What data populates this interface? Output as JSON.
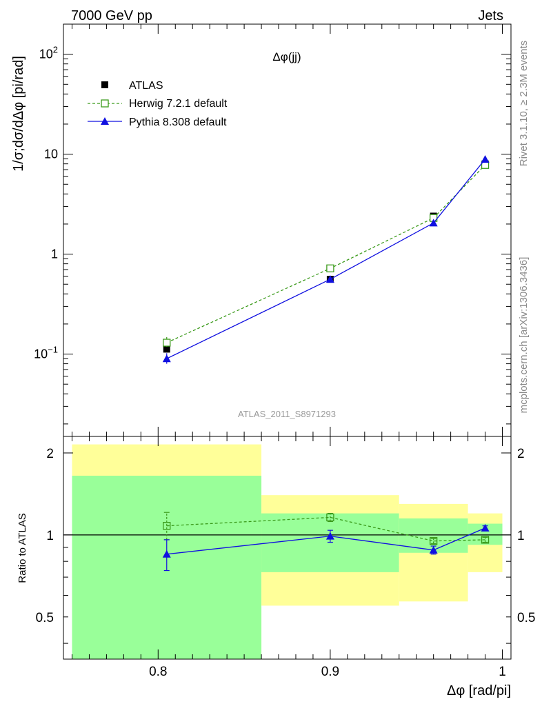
{
  "header": {
    "left": "7000 GeV pp",
    "right": "Jets"
  },
  "side_labels": {
    "rivet": "Rivet 3.1.10, ≥ 2.3M events",
    "source": "mcplots.cern.ch [arXiv:1306.3436]"
  },
  "colors": {
    "atlas": "#000000",
    "herwig": "#3a9a1a",
    "pythia": "#1010e0",
    "band_inner": "#99ff99",
    "band_outer": "#ffff99"
  },
  "chart_data": [
    {
      "type": "line",
      "title": "Δφ(jj)",
      "watermark": "ATLAS_2011_S8971293",
      "ylabel": "1/σ;dσ/dΔφ [pi/rad]",
      "yscale": "log",
      "xlim": [
        0.745,
        1.005
      ],
      "ylim": [
        0.015,
        200
      ],
      "yticks": [
        {
          "v": 0.1,
          "base": "10",
          "exp": "−1"
        },
        {
          "v": 1,
          "label": "1"
        },
        {
          "v": 10,
          "label": "10"
        },
        {
          "v": 100,
          "base": "10",
          "exp": "2"
        }
      ],
      "legend_position": "top-left",
      "x": [
        0.805,
        0.9,
        0.96,
        0.99
      ],
      "series": [
        {
          "name": "ATLAS",
          "key": "atlas",
          "values": [
            0.112,
            0.56,
            2.4,
            8.0
          ]
        },
        {
          "name": "Herwig 7.2.1 default",
          "key": "herwig",
          "values": [
            0.13,
            0.72,
            2.3,
            7.8
          ],
          "err": [
            [
              0.118,
              0.148
            ],
            [
              0.68,
              0.76
            ],
            [
              2.2,
              2.4
            ],
            [
              7.5,
              8.1
            ]
          ]
        },
        {
          "name": "Pythia 8.308 default",
          "key": "pythia",
          "values": [
            0.09,
            0.56,
            2.05,
            8.9
          ],
          "err": [
            [
              0.08,
              0.102
            ],
            [
              0.53,
              0.59
            ],
            [
              1.95,
              2.15
            ],
            [
              8.6,
              9.2
            ]
          ]
        }
      ]
    },
    {
      "type": "line",
      "ylabel": "Ratio to ATLAS",
      "xlabel": "Δφ [rad/pi]",
      "xlim": [
        0.745,
        1.005
      ],
      "ylim": [
        0.35,
        2.3
      ],
      "xticks": [
        "0.8",
        "0.9",
        "1"
      ],
      "yticks": [
        "0.5",
        "1",
        "2"
      ],
      "reference_line": 1,
      "bands": [
        {
          "x0": 0.75,
          "x1": 0.86,
          "inner": [
            0.35,
            1.65
          ],
          "outer": [
            0.35,
            2.15
          ]
        },
        {
          "x0": 0.86,
          "x1": 0.94,
          "inner": [
            0.73,
            1.2
          ],
          "outer": [
            0.55,
            1.4
          ]
        },
        {
          "x0": 0.94,
          "x1": 0.98,
          "inner": [
            0.86,
            1.15
          ],
          "outer": [
            0.57,
            1.3
          ]
        },
        {
          "x0": 0.98,
          "x1": 1.0,
          "inner": [
            0.92,
            1.1
          ],
          "outer": [
            0.73,
            1.2
          ]
        }
      ],
      "x": [
        0.805,
        0.9,
        0.96,
        0.99
      ],
      "series": [
        {
          "name": "Herwig 7.2.1 default",
          "key": "herwig",
          "values": [
            1.08,
            1.16,
            0.95,
            0.96
          ],
          "err": [
            [
              0.96,
              1.21
            ],
            [
              1.12,
              1.2
            ],
            [
              0.93,
              0.97
            ],
            [
              0.94,
              0.98
            ]
          ]
        },
        {
          "name": "Pythia 8.308 default",
          "key": "pythia",
          "values": [
            0.85,
            0.99,
            0.88,
            1.06
          ],
          "err": [
            [
              0.74,
              0.96
            ],
            [
              0.94,
              1.04
            ],
            [
              0.85,
              0.91
            ],
            [
              1.04,
              1.08
            ]
          ]
        }
      ]
    }
  ]
}
